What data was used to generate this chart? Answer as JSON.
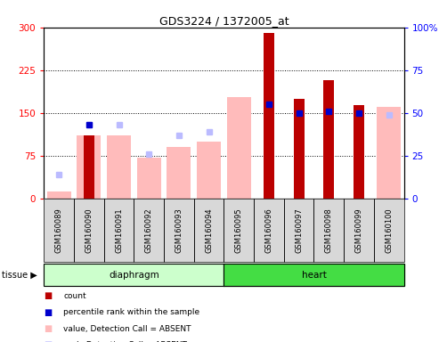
{
  "title": "GDS3224 / 1372005_at",
  "samples": [
    "GSM160089",
    "GSM160090",
    "GSM160091",
    "GSM160092",
    "GSM160093",
    "GSM160094",
    "GSM160095",
    "GSM160096",
    "GSM160097",
    "GSM160098",
    "GSM160099",
    "GSM160100"
  ],
  "count_values": [
    null,
    110,
    null,
    null,
    null,
    null,
    null,
    290,
    175,
    208,
    163,
    null
  ],
  "rank_pct_values": [
    null,
    43,
    null,
    null,
    null,
    null,
    null,
    55,
    50,
    51,
    50,
    null
  ],
  "absent_value_values": [
    12,
    110,
    110,
    72,
    90,
    100,
    178,
    null,
    null,
    null,
    null,
    160
  ],
  "absent_rank_pct": [
    14,
    43,
    43,
    26,
    37,
    39,
    null,
    null,
    null,
    null,
    null,
    49
  ],
  "ylim": [
    0,
    300
  ],
  "y2lim": [
    0,
    100
  ],
  "yticks": [
    0,
    75,
    150,
    225,
    300
  ],
  "y2ticks": [
    0,
    25,
    50,
    75,
    100
  ],
  "y2ticklabels": [
    "0",
    "25",
    "50",
    "75",
    "100%"
  ],
  "count_color": "#bb0000",
  "rank_color": "#0000cc",
  "absent_value_color": "#ffbbbb",
  "absent_rank_color": "#bbbbff",
  "bg_color": "#d8d8d8",
  "plot_bg": "#ffffff",
  "diaphragm_color": "#ccffcc",
  "heart_color": "#44dd44",
  "grid_color": "#000000",
  "bar_width": 0.5
}
